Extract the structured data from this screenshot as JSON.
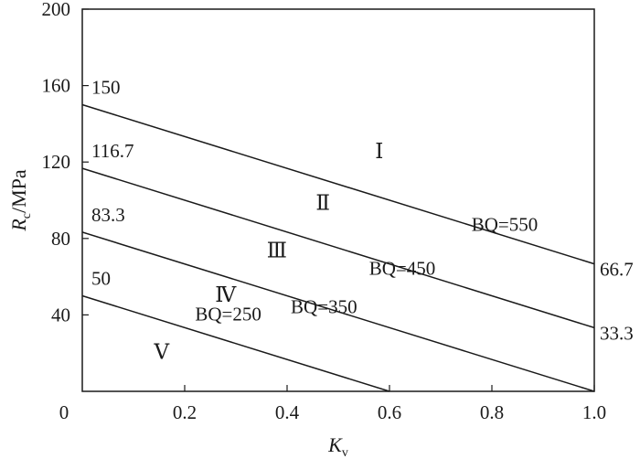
{
  "chart_data": {
    "type": "line",
    "xlabel": "K",
    "xlabel_sub": "v",
    "ylabel_main": "R",
    "ylabel_sub": "c",
    "ylabel_unit": "/MPa",
    "xlim": [
      0,
      1.0
    ],
    "ylim": [
      0,
      200
    ],
    "x_ticks": [
      0.2,
      0.4,
      0.6,
      0.8,
      1.0
    ],
    "x_tick_labels": [
      "0.2",
      "0.4",
      "0.6",
      "0.8",
      "1.0"
    ],
    "y_ticks": [
      40,
      80,
      120,
      160,
      200
    ],
    "y_tick_labels": [
      "40",
      "80",
      "120",
      "160",
      "200"
    ],
    "origin_label": "0",
    "grid": false,
    "series": [
      {
        "name": "BQ=550",
        "x": [
          0,
          1.0
        ],
        "y": [
          150,
          66.7
        ],
        "start_label": "150",
        "end_label": "66.7"
      },
      {
        "name": "BQ=450",
        "x": [
          0,
          1.0
        ],
        "y": [
          116.7,
          33.3
        ],
        "start_label": "116.7",
        "end_label": "33.3"
      },
      {
        "name": "BQ=350",
        "x": [
          0,
          1.0
        ],
        "y": [
          83.3,
          0
        ],
        "start_label": "83.3",
        "end_label": ""
      },
      {
        "name": "BQ=250",
        "x": [
          0,
          0.6
        ],
        "y": [
          50,
          0
        ],
        "start_label": "50",
        "end_label": ""
      }
    ],
    "regions": [
      {
        "label": "Ⅰ",
        "x": 0.58,
        "y": 122
      },
      {
        "label": "Ⅱ",
        "x": 0.47,
        "y": 95
      },
      {
        "label": "Ⅲ",
        "x": 0.38,
        "y": 70
      },
      {
        "label": "Ⅳ",
        "x": 0.28,
        "y": 47
      },
      {
        "label": "Ⅴ",
        "x": 0.155,
        "y": 17
      }
    ],
    "annotations": [
      {
        "text": "BQ=550",
        "x": 0.825,
        "y": 84
      },
      {
        "text": "BQ=450",
        "x": 0.625,
        "y": 61
      },
      {
        "text": "BQ=350",
        "x": 0.472,
        "y": 41
      },
      {
        "text": "BQ=250",
        "x": 0.285,
        "y": 37
      }
    ]
  },
  "colors": {
    "line": "#1a1a1a",
    "axis": "#1a1a1a",
    "background": "#ffffff"
  }
}
